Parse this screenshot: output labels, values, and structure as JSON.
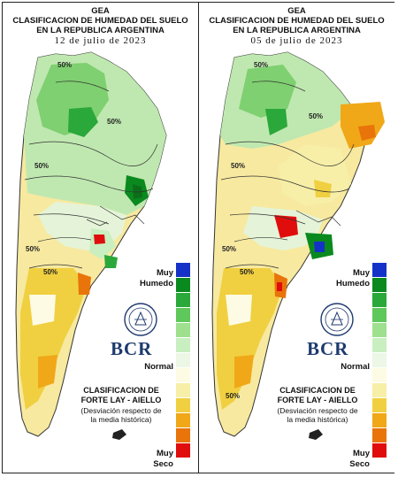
{
  "maps": [
    {
      "org": "GEA",
      "title_line1": "CLASIFICACION DE HUMEDAD DEL SUELO",
      "title_line2": "EN LA REPUBLICA ARGENTINA",
      "date": "12 de julio de 2023",
      "contour_labels": [
        "50%",
        "50%",
        "50%",
        "50%",
        "50%"
      ]
    },
    {
      "org": "GEA",
      "title_line1": "CLASIFICACION DE HUMEDAD DEL SUELO",
      "title_line2": "EN LA REPUBLICA ARGENTINA",
      "date": "05 de julio de 2023",
      "contour_labels": [
        "50%",
        "50%",
        "50%",
        "50%",
        "50%",
        "50%"
      ]
    }
  ],
  "legend": {
    "top_label_1": "Muy",
    "top_label_2": "Humedo",
    "mid_label": "Normal",
    "bottom_label_1": "Muy",
    "bottom_label_2": "Seco",
    "colors": [
      "#1432c8",
      "#0a8a1e",
      "#2aa83a",
      "#5ec85a",
      "#9ee08e",
      "#c9efc0",
      "#ecf7e6",
      "#fdfbe4",
      "#f7efa8",
      "#f0d040",
      "#f0a818",
      "#e8740a",
      "#e00d0d"
    ]
  },
  "logo": {
    "text": "BCR"
  },
  "classification": {
    "line1": "CLASIFICACION DE",
    "line2": "FORTE LAY - AIELLO",
    "line3": "(Desviación respecto de",
    "line4": "la media histórica)"
  }
}
